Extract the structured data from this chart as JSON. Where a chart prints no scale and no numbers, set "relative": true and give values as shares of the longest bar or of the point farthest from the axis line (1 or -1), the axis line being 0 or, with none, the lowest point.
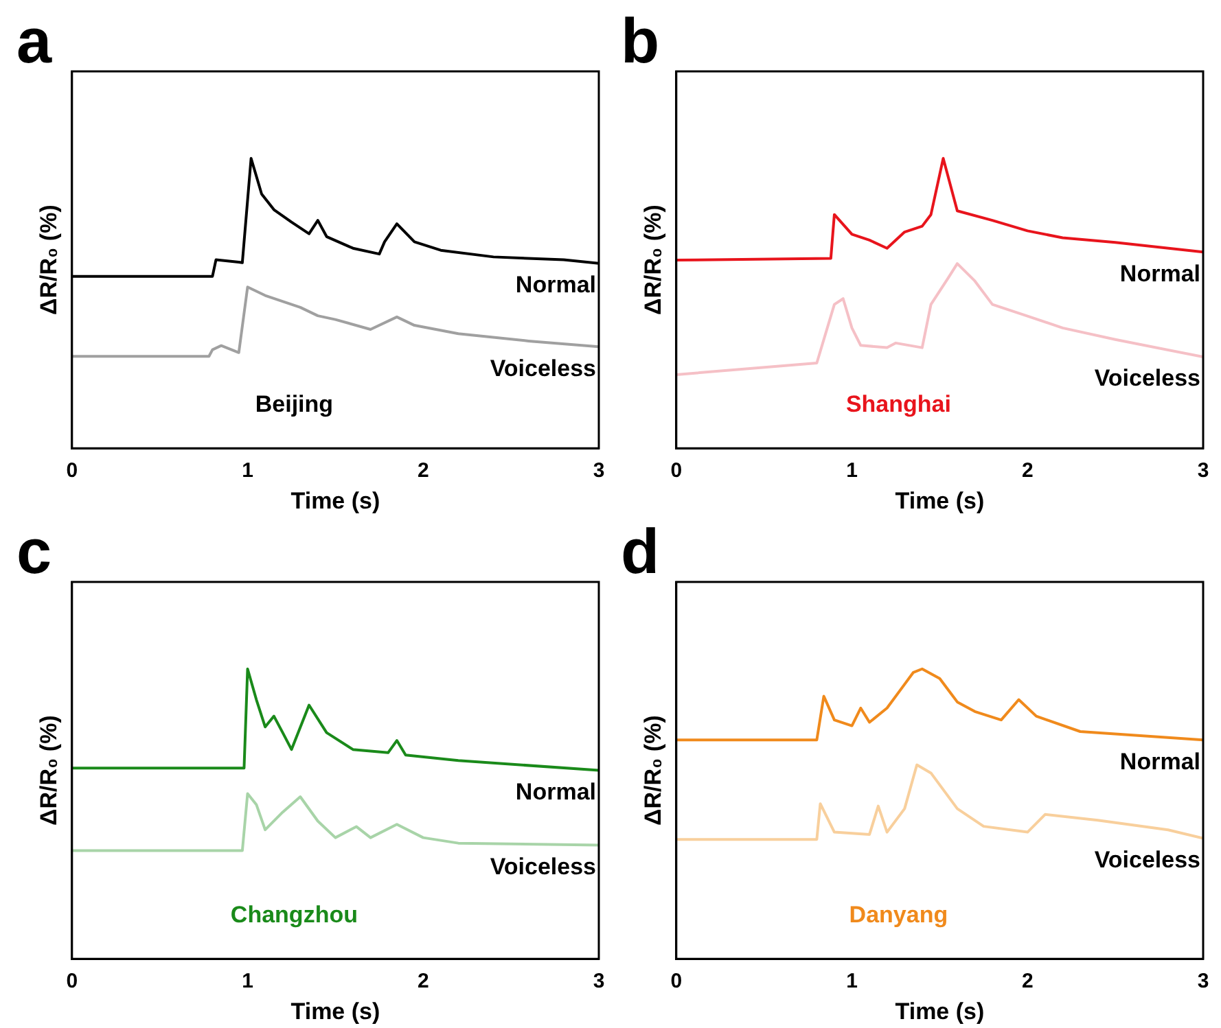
{
  "chart_data": [
    {
      "type": "line",
      "title": "a",
      "xlabel": "Time (s)",
      "ylabel": "ΔR/R₀ (%)",
      "relative": true,
      "xlim": [
        0,
        3
      ],
      "xticks": [
        0,
        1,
        2,
        3
      ],
      "annotations": [
        "Beijing"
      ],
      "series": [
        {
          "name": "Normal",
          "color": "#000000",
          "x": [
            0,
            0.8,
            0.82,
            0.95,
            0.97,
            1.02,
            1.08,
            1.15,
            1.25,
            1.35,
            1.4,
            1.45,
            1.6,
            1.75,
            1.78,
            1.85,
            1.95,
            2.1,
            2.4,
            2.8,
            3
          ],
          "values": [
            0.593,
            0.593,
            0.65,
            0.642,
            0.64,
            1.0,
            0.877,
            0.823,
            0.78,
            0.74,
            0.786,
            0.73,
            0.69,
            0.67,
            0.712,
            0.774,
            0.712,
            0.683,
            0.66,
            0.65,
            0.638
          ]
        },
        {
          "name": "Voiceless",
          "color": "#a0a0a0",
          "x": [
            0,
            0.78,
            0.8,
            0.85,
            0.95,
            1.0,
            1.1,
            1.3,
            1.4,
            1.5,
            1.7,
            1.85,
            1.95,
            2.2,
            2.6,
            3
          ],
          "values": [
            0.317,
            0.317,
            0.34,
            0.354,
            0.33,
            0.556,
            0.527,
            0.486,
            0.457,
            0.444,
            0.41,
            0.453,
            0.424,
            0.395,
            0.37,
            0.35
          ]
        }
      ]
    },
    {
      "type": "line",
      "title": "b",
      "xlabel": "Time (s)",
      "ylabel": "ΔR/R₀ (%)",
      "relative": true,
      "xlim": [
        0,
        3
      ],
      "xticks": [
        0,
        1,
        2,
        3
      ],
      "annotations": [
        "Shanghai"
      ],
      "series": [
        {
          "name": "Normal",
          "color": "#e8141c",
          "x": [
            0,
            0.88,
            0.9,
            1.0,
            1.1,
            1.2,
            1.3,
            1.4,
            1.45,
            1.52,
            1.6,
            1.8,
            2.0,
            2.2,
            2.5,
            3
          ],
          "values": [
            0.649,
            0.655,
            0.806,
            0.738,
            0.718,
            0.69,
            0.746,
            0.766,
            0.806,
            1.0,
            0.819,
            0.786,
            0.75,
            0.726,
            0.71,
            0.677
          ]
        },
        {
          "name": "Voiceless",
          "color": "#f5c0c6",
          "x": [
            0,
            0.8,
            0.9,
            0.95,
            1.0,
            1.05,
            1.2,
            1.25,
            1.4,
            1.45,
            1.55,
            1.6,
            1.7,
            1.8,
            2.0,
            2.2,
            2.5,
            3
          ],
          "values": [
            0.254,
            0.294,
            0.496,
            0.516,
            0.415,
            0.355,
            0.347,
            0.363,
            0.347,
            0.496,
            0.589,
            0.637,
            0.577,
            0.496,
            0.456,
            0.415,
            0.375,
            0.315
          ]
        }
      ]
    },
    {
      "type": "line",
      "title": "c",
      "xlabel": "Time (s)",
      "ylabel": "ΔR/R₀ (%)",
      "relative": true,
      "xlim": [
        0,
        3
      ],
      "xticks": [
        0,
        1,
        2,
        3
      ],
      "annotations": [
        "Changzhou"
      ],
      "series": [
        {
          "name": "Normal",
          "color": "#1a8a1a",
          "x": [
            0,
            0.98,
            1.0,
            1.05,
            1.1,
            1.15,
            1.2,
            1.25,
            1.35,
            1.45,
            1.6,
            1.8,
            1.85,
            1.9,
            2.2,
            3
          ],
          "values": [
            0.658,
            0.658,
            1.0,
            0.894,
            0.8,
            0.837,
            0.78,
            0.722,
            0.875,
            0.78,
            0.722,
            0.711,
            0.753,
            0.703,
            0.684,
            0.65
          ]
        },
        {
          "name": "Voiceless",
          "color": "#a8d4a8",
          "x": [
            0,
            0.97,
            1.0,
            1.05,
            1.1,
            1.2,
            1.3,
            1.4,
            1.5,
            1.62,
            1.7,
            1.85,
            2.0,
            2.2,
            3
          ],
          "values": [
            0.373,
            0.373,
            0.57,
            0.532,
            0.445,
            0.506,
            0.559,
            0.475,
            0.418,
            0.456,
            0.418,
            0.464,
            0.418,
            0.399,
            0.392
          ]
        }
      ]
    },
    {
      "type": "line",
      "title": "d",
      "xlabel": "Time (s)",
      "ylabel": "ΔR/R₀ (%)",
      "relative": true,
      "xlim": [
        0,
        3
      ],
      "xticks": [
        0,
        1,
        2,
        3
      ],
      "annotations": [
        "Danyang"
      ],
      "series": [
        {
          "name": "Normal",
          "color": "#f08a1c",
          "x": [
            0,
            0.8,
            0.84,
            0.9,
            1.0,
            1.05,
            1.1,
            1.2,
            1.3,
            1.35,
            1.4,
            1.5,
            1.6,
            1.7,
            1.85,
            1.95,
            2.05,
            2.3,
            3
          ],
          "values": [
            0.755,
            0.755,
            0.906,
            0.824,
            0.804,
            0.865,
            0.816,
            0.865,
            0.947,
            0.988,
            1.0,
            0.967,
            0.886,
            0.853,
            0.824,
            0.894,
            0.837,
            0.784,
            0.755
          ]
        },
        {
          "name": "Voiceless",
          "color": "#f8cf9c",
          "x": [
            0,
            0.8,
            0.82,
            0.9,
            1.1,
            1.15,
            1.2,
            1.3,
            1.37,
            1.45,
            1.6,
            1.75,
            2.0,
            2.1,
            2.4,
            2.8,
            3
          ],
          "values": [
            0.412,
            0.412,
            0.535,
            0.437,
            0.429,
            0.527,
            0.437,
            0.518,
            0.669,
            0.641,
            0.518,
            0.457,
            0.437,
            0.498,
            0.478,
            0.445,
            0.416
          ]
        }
      ]
    }
  ]
}
